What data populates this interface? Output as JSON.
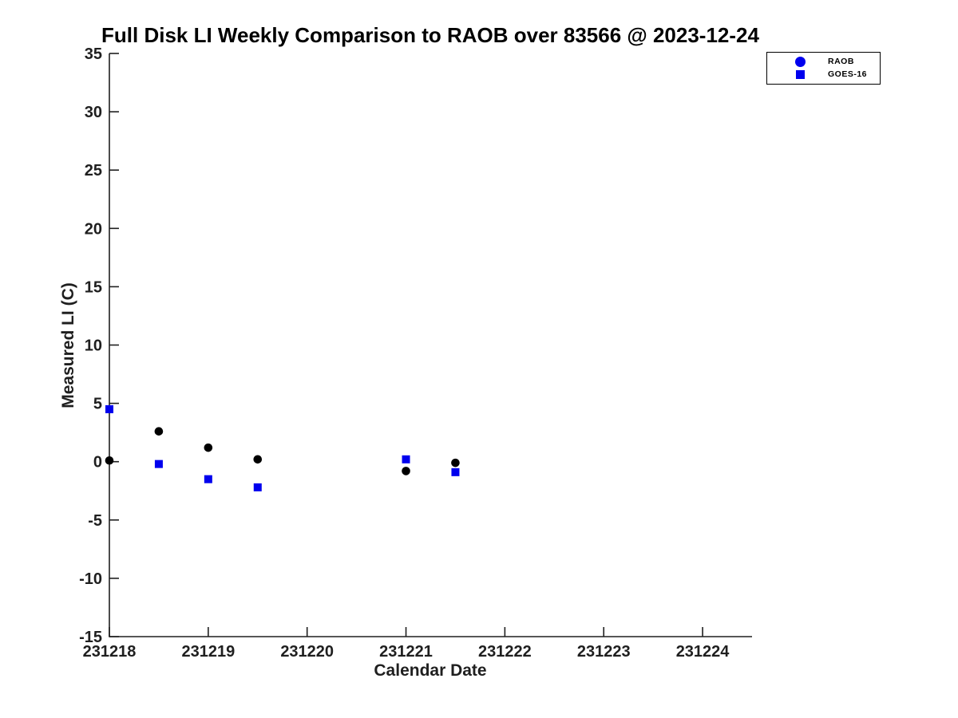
{
  "title": "Full Disk LI Weekly Comparison to RAOB over 83566 @ 2023-12-24",
  "colors": {
    "raob_point": "#000000",
    "goes16_point": "#0000ee",
    "legend_marker": "#0000ee",
    "axis": "#1f1f1f",
    "text": "#1f1f1f",
    "title_text": "#000000",
    "background": "#ffffff"
  },
  "chart_data": {
    "type": "scatter",
    "title": "Full Disk LI Weekly Comparison to RAOB over 83566 @ 2023-12-24",
    "xlabel": "Calendar Date",
    "ylabel": "Measured LI (C)",
    "xlim": [
      231218,
      231224.5
    ],
    "ylim": [
      -15,
      35
    ],
    "xticks": [
      231218,
      231219,
      231220,
      231221,
      231222,
      231223,
      231224
    ],
    "yticks": [
      -15,
      -10,
      -5,
      0,
      5,
      10,
      15,
      20,
      25,
      30,
      35
    ],
    "grid": false,
    "legend_position": "outside-top-right",
    "series": [
      {
        "name": "RAOB",
        "marker": "circle",
        "color": "#000000",
        "legend_marker_color": "#0000ee",
        "points": [
          [
            231218.0,
            0.1
          ],
          [
            231218.5,
            2.6
          ],
          [
            231219.0,
            1.2
          ],
          [
            231219.5,
            0.2
          ],
          [
            231221.0,
            -0.8
          ],
          [
            231221.5,
            -0.1
          ]
        ]
      },
      {
        "name": "GOES-16",
        "marker": "square",
        "color": "#0000ee",
        "legend_marker_color": "#0000ee",
        "points": [
          [
            231218.0,
            4.5
          ],
          [
            231218.5,
            -0.2
          ],
          [
            231219.0,
            -1.5
          ],
          [
            231219.5,
            -2.2
          ],
          [
            231221.0,
            0.2
          ],
          [
            231221.5,
            -0.9
          ]
        ]
      }
    ]
  },
  "legend": {
    "items": [
      {
        "label": "RAOB"
      },
      {
        "label": "GOES-16"
      }
    ]
  }
}
